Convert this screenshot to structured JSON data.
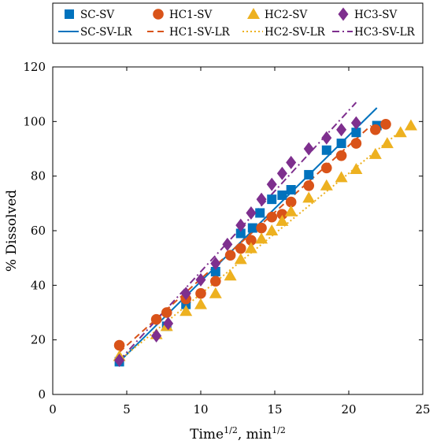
{
  "chart_data": {
    "type": "scatter",
    "title": "",
    "xlabel_base": "Time",
    "xlabel_sup1": "1/2",
    "xlabel_mid": ", min",
    "xlabel_sup2": "1/2",
    "ylabel": "% Dissolved",
    "xlim": [
      0,
      25
    ],
    "ylim": [
      0,
      120
    ],
    "xticks": [
      "0",
      "5",
      "10",
      "15",
      "20",
      "25"
    ],
    "yticks": [
      "0",
      "20",
      "40",
      "60",
      "80",
      "100",
      "120"
    ],
    "grid": false,
    "legend_position": "top",
    "series": [
      {
        "name": "SC-SV",
        "marker": "square",
        "color": "#0072BD",
        "points": [
          [
            4.5,
            12
          ],
          [
            7.7,
            25
          ],
          [
            9,
            33
          ],
          [
            11,
            45
          ],
          [
            12.7,
            59
          ],
          [
            13.5,
            61
          ],
          [
            14,
            66.5
          ],
          [
            14.8,
            71.5
          ],
          [
            15.5,
            73
          ],
          [
            16.1,
            75
          ],
          [
            17.3,
            80.5
          ],
          [
            18.5,
            89.5
          ],
          [
            19.5,
            92
          ],
          [
            20.5,
            96
          ],
          [
            21.9,
            98.5
          ]
        ]
      },
      {
        "name": "HC1-SV",
        "marker": "circle",
        "color": "#D95319",
        "points": [
          [
            4.5,
            18
          ],
          [
            7,
            27.5
          ],
          [
            7.7,
            30
          ],
          [
            9,
            35
          ],
          [
            10,
            37
          ],
          [
            11,
            41.5
          ],
          [
            12,
            51
          ],
          [
            12.7,
            53.5
          ],
          [
            13.4,
            56.5
          ],
          [
            14.1,
            61
          ],
          [
            14.8,
            65
          ],
          [
            15.5,
            66
          ],
          [
            16.1,
            70.5
          ],
          [
            17.3,
            76.5
          ],
          [
            18.5,
            83
          ],
          [
            19.5,
            87.5
          ],
          [
            20.5,
            92
          ],
          [
            21.8,
            97
          ],
          [
            22.5,
            99
          ]
        ]
      },
      {
        "name": "HC2-SV",
        "marker": "triangle",
        "color": "#EDB120",
        "points": [
          [
            4.5,
            14
          ],
          [
            7,
            22
          ],
          [
            7.7,
            25
          ],
          [
            9,
            30.5
          ],
          [
            10,
            33
          ],
          [
            11,
            37
          ],
          [
            12,
            43.5
          ],
          [
            12.7,
            49.5
          ],
          [
            13.4,
            53.5
          ],
          [
            14.1,
            57
          ],
          [
            14.8,
            60
          ],
          [
            15.5,
            63.5
          ],
          [
            16.1,
            67
          ],
          [
            17.3,
            72
          ],
          [
            18.5,
            76.5
          ],
          [
            19.5,
            79.5
          ],
          [
            20.5,
            82.5
          ],
          [
            21.8,
            88
          ],
          [
            22.6,
            92
          ],
          [
            23.5,
            96
          ],
          [
            24.2,
            98.5
          ]
        ]
      },
      {
        "name": "HC3-SV",
        "marker": "diamond",
        "color": "#7E2F8E",
        "points": [
          [
            4.5,
            12.5
          ],
          [
            7,
            21.5
          ],
          [
            7.8,
            26
          ],
          [
            9,
            37
          ],
          [
            10,
            42
          ],
          [
            11,
            48
          ],
          [
            11.8,
            55
          ],
          [
            12.7,
            62
          ],
          [
            13.4,
            66.5
          ],
          [
            14.1,
            71.5
          ],
          [
            14.8,
            77
          ],
          [
            15.5,
            81
          ],
          [
            16.1,
            85
          ],
          [
            17.3,
            90
          ],
          [
            18.5,
            94
          ],
          [
            19.5,
            97
          ],
          [
            20.5,
            99.5
          ]
        ]
      },
      {
        "name": "SC-SV-LR",
        "line_style": "solid",
        "color": "#0072BD",
        "points": [
          [
            4.5,
            12
          ],
          [
            21.9,
            105
          ]
        ]
      },
      {
        "name": "HC1-SV-LR",
        "line_style": "dashed",
        "color": "#D95319",
        "points": [
          [
            4.5,
            15.5
          ],
          [
            21.5,
            98.5
          ]
        ]
      },
      {
        "name": "HC2-SV-LR",
        "line_style": "dotted",
        "color": "#EDB120",
        "points": [
          [
            4.5,
            12.5
          ],
          [
            23.5,
            96.5
          ]
        ]
      },
      {
        "name": "HC3-SV-LR",
        "line_style": "dashdot",
        "color": "#7E2F8E",
        "points": [
          [
            4.5,
            12.5
          ],
          [
            20.5,
            107
          ]
        ]
      }
    ]
  }
}
